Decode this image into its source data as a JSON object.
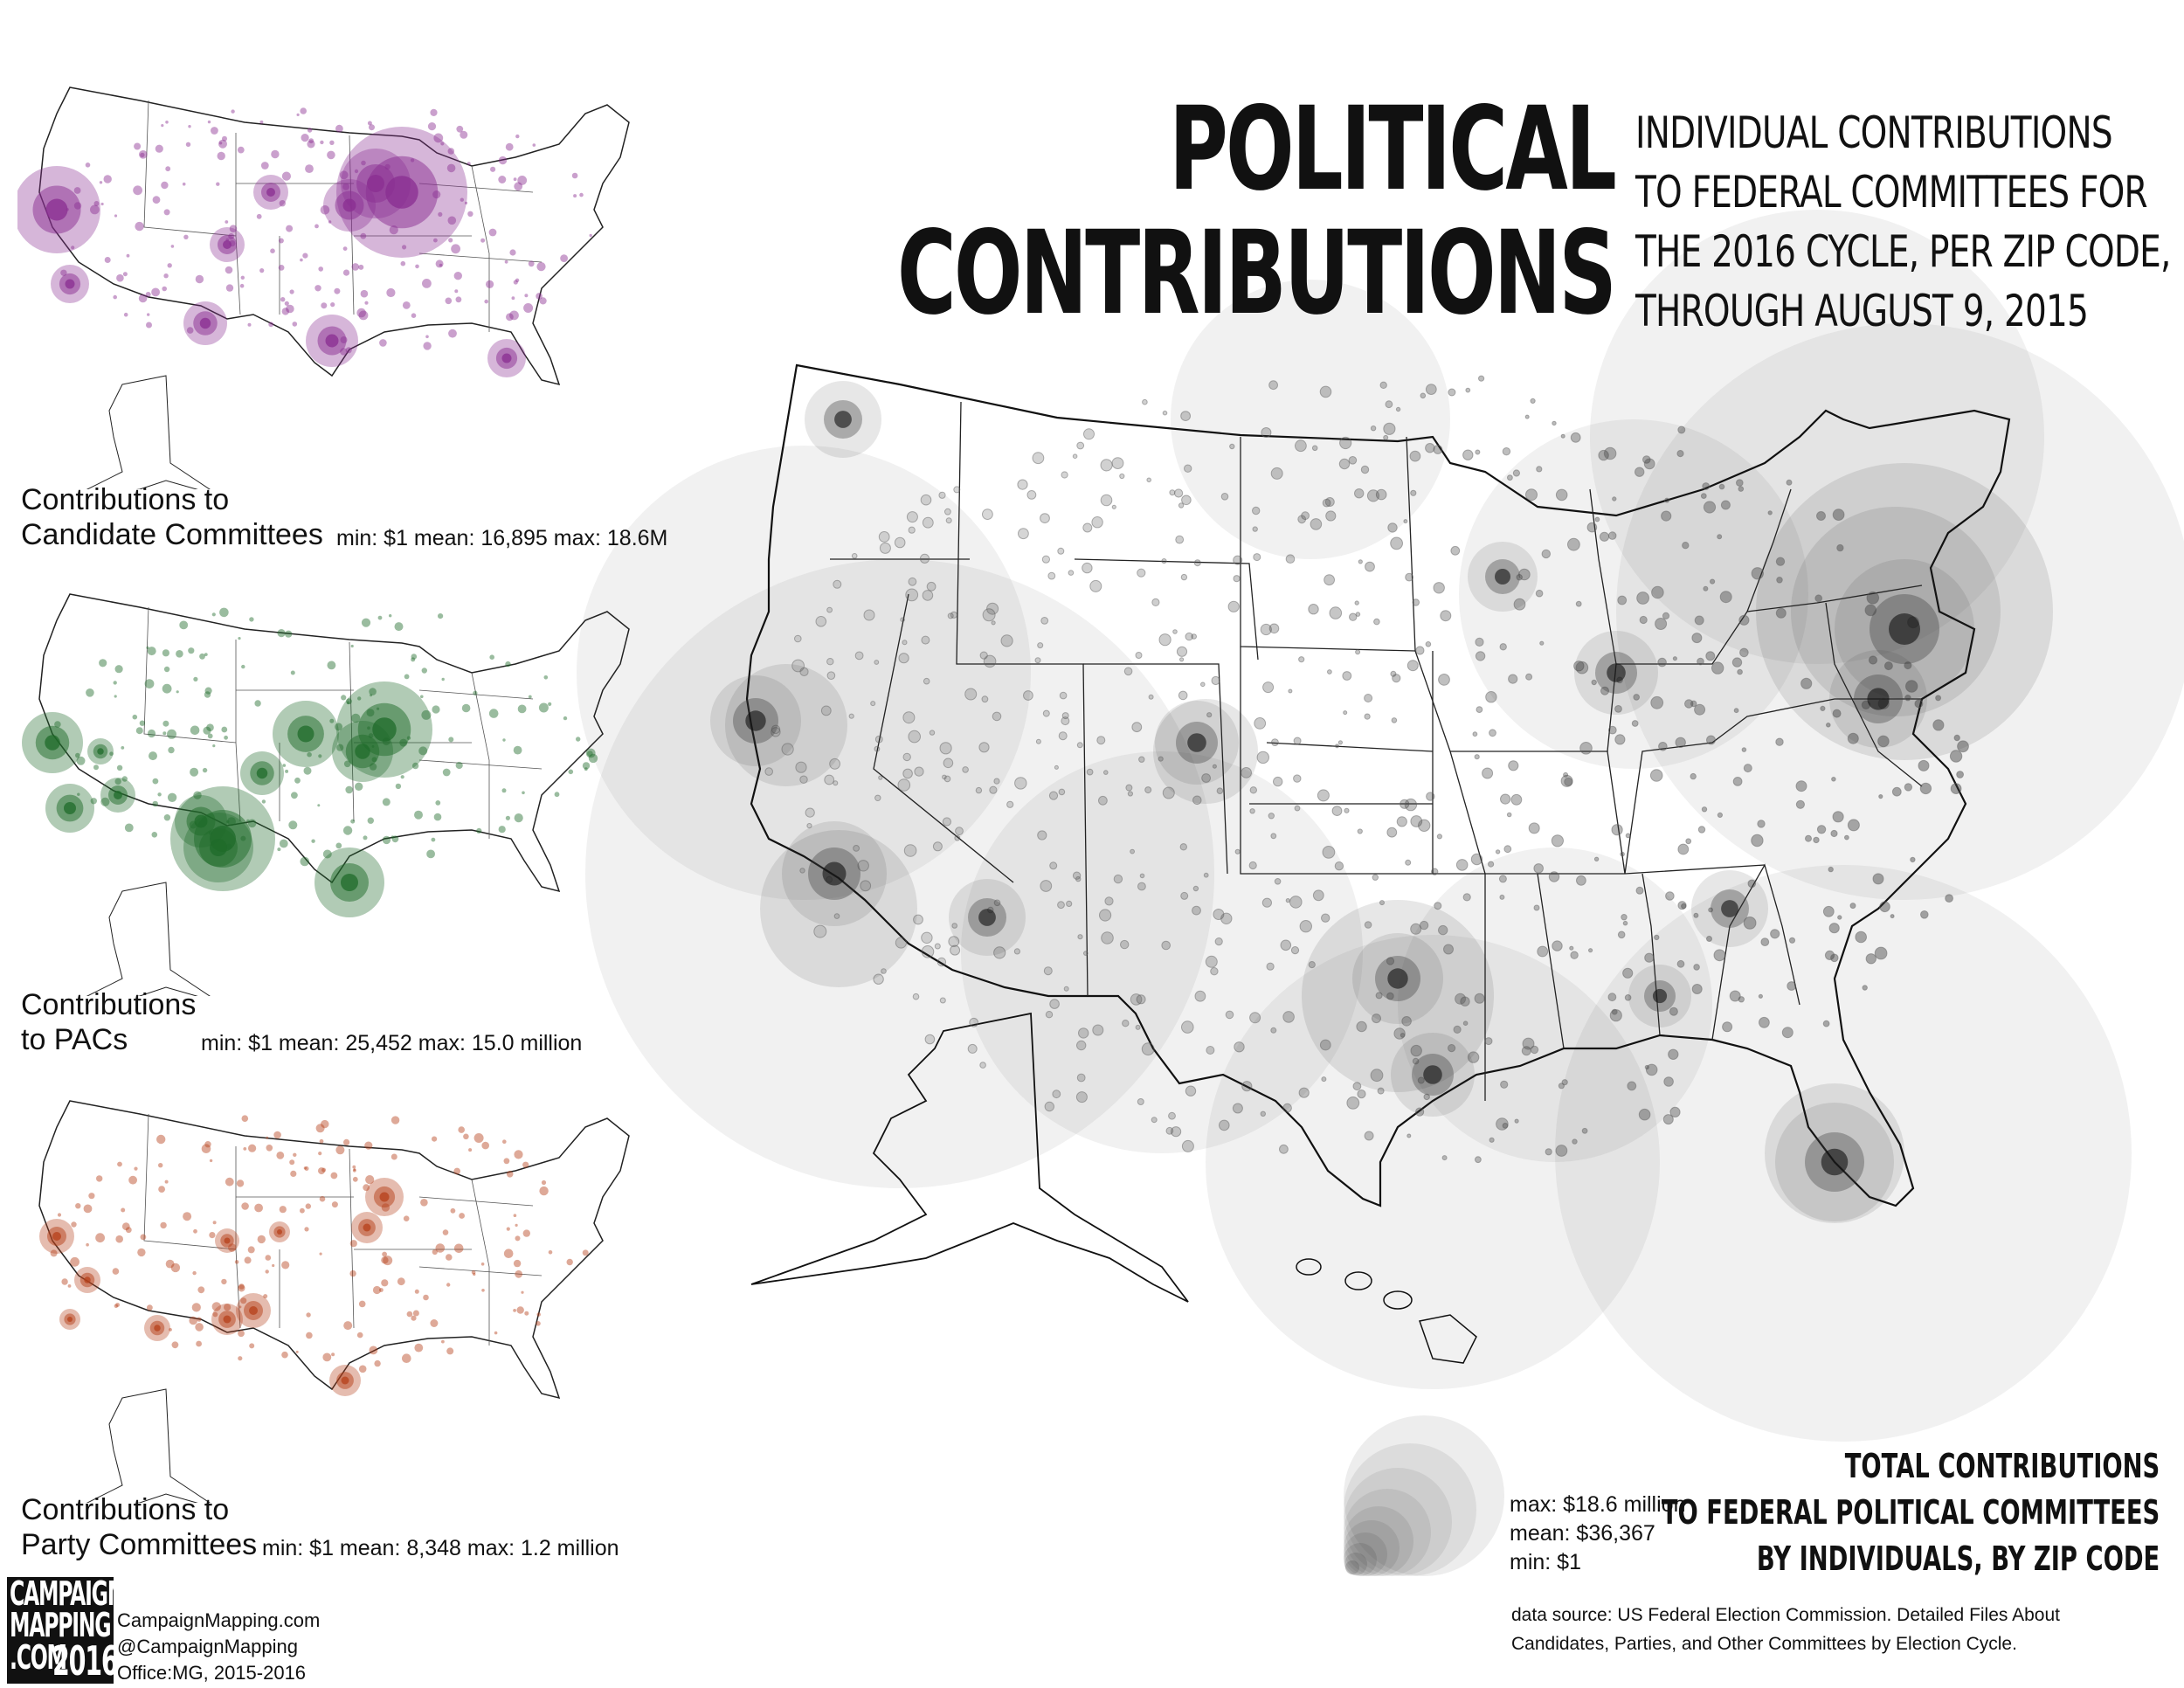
{
  "title": {
    "line1": "POLITICAL",
    "line2": "CONTRIBUTIONS"
  },
  "subtitle": {
    "line1": "INDIVIDUAL CONTRIBUTIONS",
    "line2": "TO FEDERAL COMMITTEES FOR",
    "line3": "THE 2016 CYCLE, PER ZIP CODE,",
    "line4": "THROUGH AUGUST 9, 2015"
  },
  "insets": {
    "candidate": {
      "label_line1": "Contributions to",
      "label_line2": "Candidate Committees",
      "stats": "min: $1  mean: 16,895  max: 18.6M",
      "color": "#8a2d91"
    },
    "pacs": {
      "label_line1": "Contributions",
      "label_line2": "to PACs",
      "stats": "min: $1  mean: 25,452  max: 15.0 million",
      "color": "#1f6b2a"
    },
    "party": {
      "label_line1": "Contributions to",
      "label_line2": "Party Committees",
      "stats": "min: $1  mean: 8,348  max: 1.2 million",
      "color": "#b5401a"
    }
  },
  "main_map": {
    "color": "#3a3a3a"
  },
  "legend": {
    "max": "max: $18.6 million",
    "mean": "mean: $36,367",
    "min": "min: $1"
  },
  "total": {
    "line1": "TOTAL CONTRIBUTIONS",
    "line2": "TO FEDERAL POLITICAL COMMITTEES",
    "line3": "BY INDIVIDUALS, BY ZIP CODE"
  },
  "source": {
    "line1": "data source: US Federal Election Commission. Detailed Files About",
    "line2": "Candidates, Parties, and Other Committees by Election Cycle."
  },
  "logo": {
    "line1": "CAMPAIGN",
    "line2": "MAPPING",
    "line3": ".COM",
    "year": "2016"
  },
  "credits": {
    "site": "CampaignMapping.com",
    "handle": "@CampaignMapping",
    "office": "Office:MG, 2015-2016"
  }
}
